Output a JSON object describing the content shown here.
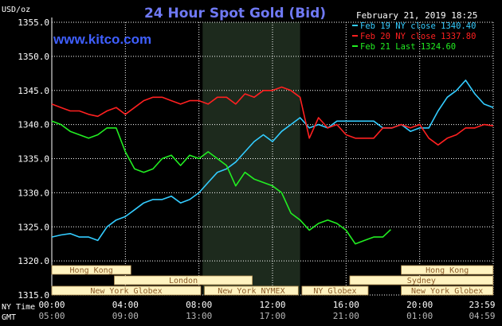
{
  "chart_data": {
    "type": "line",
    "title": "24 Hour Spot Gold (Bid)",
    "watermark": "www.kitco.com",
    "y_unit": "USD/oz",
    "date_label": "February 21, 2019 18:25",
    "ylim": [
      1315,
      1355
    ],
    "yticks": [
      1315,
      1320,
      1325,
      1330,
      1335,
      1340,
      1345,
      1350,
      1355
    ],
    "ytick_labels": [
      "1315.0",
      "1320.0",
      "1325.0",
      "1330.0",
      "1335.0",
      "1340.0",
      "1345.0",
      "1350.0",
      "1355.0"
    ],
    "xlim": [
      0,
      24
    ],
    "time_row_label_1": "NY Time",
    "time_row_label_2": "GMT",
    "xticks": [
      0,
      4,
      8,
      12,
      16,
      20,
      24
    ],
    "xtick_labels_ny": [
      "00:00",
      "04:00",
      "08:00",
      "12:00",
      "16:00",
      "20:00",
      "23:59"
    ],
    "xtick_labels_gmt": [
      "05:00",
      "09:00",
      "13:00",
      "17:00",
      "21:00",
      "01:00",
      "04:59"
    ],
    "shaded_range_hours": [
      8.2,
      13.5
    ],
    "colors": {
      "background": "#000000",
      "grid": "#ffffff",
      "title": "#6f79f4",
      "watermark": "#3f5fff",
      "text": "#ffffff",
      "session_bar": "#fff3c0",
      "session_text": "#8a5a28",
      "shade": "#1d2a1d"
    },
    "sessions": [
      {
        "name": "Hong Kong",
        "start": 0,
        "end": 4.3,
        "row": 0
      },
      {
        "name": "Hong Kong",
        "start": 19.0,
        "end": 23.99,
        "row": 0
      },
      {
        "name": "London",
        "start": 3.4,
        "end": 10.9,
        "row": 1
      },
      {
        "name": "Sydney",
        "start": 16.2,
        "end": 23.99,
        "row": 1
      },
      {
        "name": "New York Globex",
        "start": 0,
        "end": 8.1,
        "row": 2
      },
      {
        "name": "New York NYMEX",
        "start": 8.3,
        "end": 13.4,
        "row": 2
      },
      {
        "name": "NY Globex",
        "start": 13.6,
        "end": 17.2,
        "row": 2
      },
      {
        "name": "New York Globex",
        "start": 19.0,
        "end": 23.99,
        "row": 2
      }
    ],
    "series": [
      {
        "name": "Feb 19 NY close 1340.40",
        "color": "#33ccff",
        "x": [
          0,
          0.5,
          1,
          1.5,
          2,
          2.5,
          3,
          3.5,
          4,
          4.5,
          5,
          5.5,
          6,
          6.5,
          7,
          7.5,
          8,
          8.5,
          9,
          9.5,
          10,
          10.5,
          11,
          11.5,
          12,
          12.5,
          13,
          13.5,
          14,
          14.5,
          15,
          15.5,
          16,
          16.5,
          17,
          17.5,
          18,
          18.5,
          19,
          19.5,
          20,
          20.5,
          21,
          21.5,
          22,
          22.5,
          23,
          23.5,
          24
        ],
        "values": [
          1323.5,
          1323.8,
          1324.0,
          1323.5,
          1323.5,
          1323.0,
          1325.0,
          1326.0,
          1326.5,
          1327.5,
          1328.5,
          1329.0,
          1329.0,
          1329.5,
          1328.5,
          1329.0,
          1330.0,
          1331.5,
          1333.0,
          1333.5,
          1334.5,
          1336.0,
          1337.5,
          1338.5,
          1337.5,
          1339.0,
          1340.0,
          1341.0,
          1339.5,
          1340.0,
          1339.5,
          1340.5,
          1340.5,
          1340.5,
          1340.5,
          1340.5,
          1339.5,
          1339.5,
          1340.0,
          1339.0,
          1339.5,
          1339.5,
          1342.0,
          1344.0,
          1345.0,
          1346.5,
          1344.5,
          1343.0,
          1342.5
        ]
      },
      {
        "name": "Feb 20 NY close 1337.80",
        "color": "#ff2020",
        "x": [
          0,
          0.5,
          1,
          1.5,
          2,
          2.5,
          3,
          3.5,
          4,
          4.5,
          5,
          5.5,
          6,
          6.5,
          7,
          7.5,
          8,
          8.5,
          9,
          9.5,
          10,
          10.5,
          11,
          11.5,
          12,
          12.5,
          13,
          13.5,
          14,
          14.5,
          15,
          15.5,
          16,
          16.5,
          17,
          17.5,
          18,
          18.5,
          19,
          19.5,
          20,
          20.5,
          21,
          21.5,
          22,
          22.5,
          23,
          23.5,
          24
        ],
        "values": [
          1343.0,
          1342.5,
          1342.0,
          1342.0,
          1341.5,
          1341.2,
          1342.0,
          1342.5,
          1341.5,
          1342.5,
          1343.5,
          1344.0,
          1344.0,
          1343.5,
          1343.0,
          1343.5,
          1343.5,
          1343.0,
          1344.0,
          1344.0,
          1343.0,
          1344.5,
          1344.0,
          1345.0,
          1345.0,
          1345.5,
          1345.0,
          1344.0,
          1338.0,
          1341.0,
          1339.5,
          1340.0,
          1338.5,
          1338.0,
          1338.0,
          1338.0,
          1339.5,
          1339.5,
          1340.0,
          1339.5,
          1340.0,
          1338.0,
          1337.0,
          1338.0,
          1338.5,
          1339.5,
          1339.5,
          1340.0,
          1339.8
        ]
      },
      {
        "name": "Feb 21 Last 1324.60",
        "color": "#22ee22",
        "x": [
          0,
          0.5,
          1,
          1.5,
          2,
          2.5,
          3,
          3.5,
          4,
          4.5,
          5,
          5.5,
          6,
          6.5,
          7,
          7.5,
          8,
          8.5,
          9,
          9.5,
          10,
          10.5,
          11,
          11.5,
          12,
          12.5,
          13,
          13.5,
          14,
          14.5,
          15,
          15.5,
          16,
          16.5,
          17,
          17.5,
          18,
          18.43
        ],
        "values": [
          1340.5,
          1340.0,
          1339.0,
          1338.5,
          1338.0,
          1338.5,
          1339.5,
          1339.5,
          1336.0,
          1333.5,
          1333.0,
          1333.5,
          1335.0,
          1335.5,
          1334.0,
          1335.5,
          1335.0,
          1336.0,
          1335.0,
          1334.0,
          1331.0,
          1333.0,
          1332.0,
          1331.5,
          1331.0,
          1330.0,
          1327.0,
          1326.0,
          1324.5,
          1325.5,
          1326.0,
          1325.5,
          1324.5,
          1322.5,
          1323.0,
          1323.5,
          1323.5,
          1324.6
        ]
      }
    ]
  }
}
